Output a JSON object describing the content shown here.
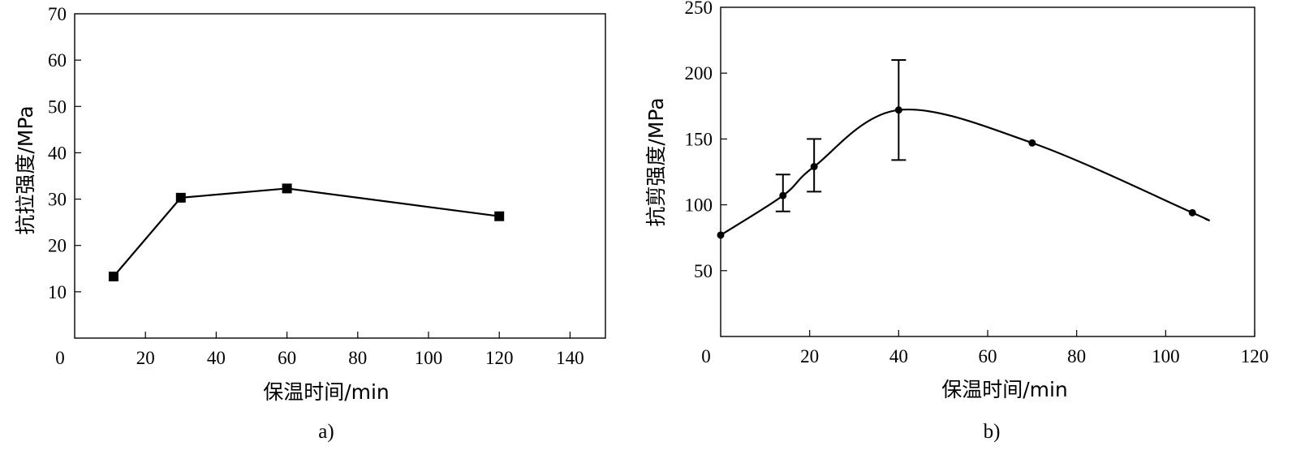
{
  "chart_data": [
    {
      "type": "line",
      "panel_label": "a)",
      "xlabel": "保温时间/min",
      "ylabel": "抗拉强度/MPa",
      "xlim": [
        0,
        150
      ],
      "ylim": [
        0,
        70
      ],
      "xticks": [
        0,
        20,
        40,
        60,
        80,
        100,
        120,
        140
      ],
      "yticks": [
        10,
        20,
        30,
        40,
        50,
        60,
        70
      ],
      "y_origin_label_at_x_axis": "0",
      "grid": false,
      "marker": "square",
      "series": [
        {
          "x": [
            11,
            30,
            60,
            120
          ],
          "y": [
            13.3,
            30.3,
            32.3,
            26.3
          ]
        }
      ]
    },
    {
      "type": "line",
      "panel_label": "b)",
      "xlabel": "保温时间/min",
      "ylabel": "抗剪强度/MPa",
      "xlim": [
        0,
        120
      ],
      "ylim": [
        0,
        250
      ],
      "xticks": [
        0,
        20,
        40,
        60,
        80,
        100,
        120
      ],
      "yticks": [
        50,
        100,
        150,
        200,
        250
      ],
      "grid": false,
      "marker": "circle",
      "smooth": true,
      "series": [
        {
          "x": [
            0,
            14,
            21,
            40,
            70,
            106
          ],
          "y": [
            77,
            107,
            129,
            172,
            147,
            94
          ],
          "error_bars": [
            null,
            [
              95,
              123
            ],
            [
              110,
              150
            ],
            [
              134,
              210
            ],
            null,
            null
          ],
          "curve_end": [
            109,
            89
          ]
        }
      ]
    }
  ]
}
